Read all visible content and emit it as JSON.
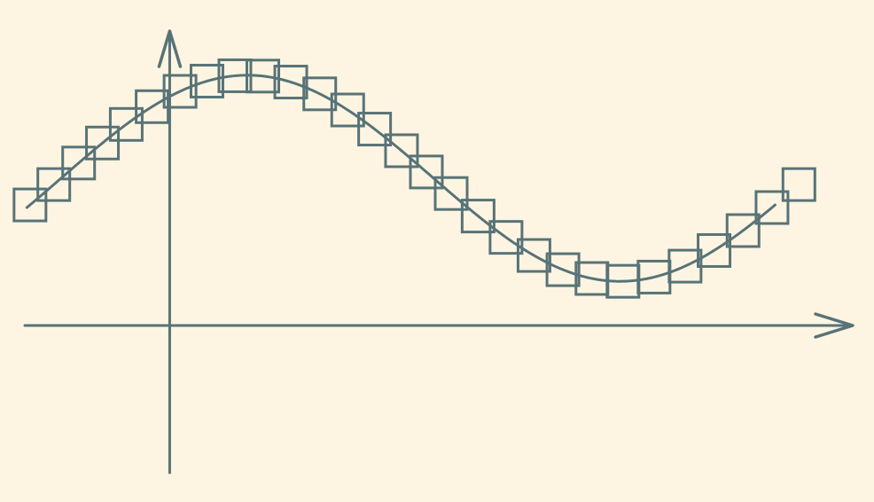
{
  "colors": {
    "background": "#fdf5e2",
    "stroke": "#587377"
  },
  "diagram": {
    "type": "function-curve-with-square-markers",
    "curve": "sine-like wave",
    "x_range": [
      -1.4,
      6.6
    ],
    "y_range": [
      -1.0,
      2.0
    ],
    "wave": {
      "offset": 1.0,
      "amplitude": 0.7,
      "peak_x": 0.75,
      "period": 7.2
    },
    "curve_x_start": -1.38,
    "curve_x_end": 5.85,
    "marker_shape": "square",
    "marker_x": [
      -1.35,
      -1.12,
      -0.88,
      -0.65,
      -0.42,
      -0.17,
      0.1,
      0.36,
      0.63,
      0.9,
      1.17,
      1.45,
      1.72,
      1.98,
      2.24,
      2.48,
      2.72,
      2.98,
      3.25,
      3.52,
      3.8,
      4.08,
      4.38,
      4.68,
      4.98,
      5.26,
      5.54,
      5.82,
      6.08
    ]
  }
}
